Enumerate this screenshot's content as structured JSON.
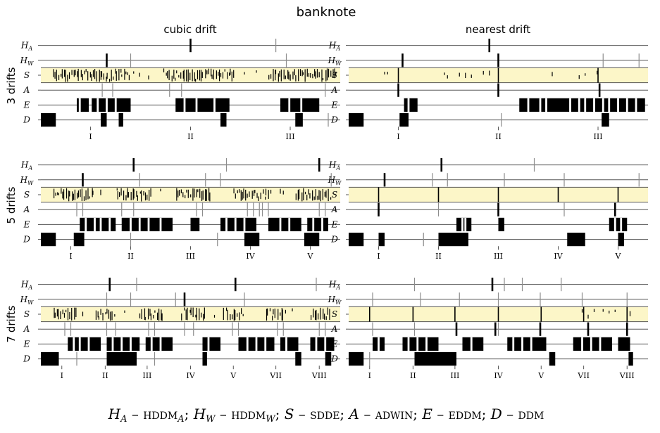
{
  "title": "banknote",
  "columns": [
    "cubic drift",
    "nearest drift"
  ],
  "rows": [
    "3 drifts",
    "5 drifts",
    "7 drifts"
  ],
  "lanes": [
    {
      "key": "HA",
      "base": "H",
      "sub": "A"
    },
    {
      "key": "HW",
      "base": "H",
      "sub": "W"
    },
    {
      "key": "S",
      "base": "S",
      "sub": ""
    },
    {
      "key": "A",
      "base": "A",
      "sub": ""
    },
    {
      "key": "E",
      "base": "E",
      "sub": ""
    },
    {
      "key": "D",
      "base": "D",
      "sub": ""
    }
  ],
  "caption": [
    {
      "t": "H",
      "c": "it"
    },
    {
      "t": "A",
      "c": "sub it"
    },
    {
      "t": " – ",
      "c": ""
    },
    {
      "t": "hddm",
      "c": "sc"
    },
    {
      "t": "A",
      "c": "sub it"
    },
    {
      "t": "; ",
      "c": ""
    },
    {
      "t": "H",
      "c": "it"
    },
    {
      "t": "W",
      "c": "sub it"
    },
    {
      "t": " – ",
      "c": ""
    },
    {
      "t": "hddm",
      "c": "sc"
    },
    {
      "t": "W",
      "c": "sub it"
    },
    {
      "t": "; ",
      "c": ""
    },
    {
      "t": "S",
      "c": "it"
    },
    {
      "t": " – ",
      "c": ""
    },
    {
      "t": "sdde",
      "c": "sc"
    },
    {
      "t": "; ",
      "c": ""
    },
    {
      "t": "A",
      "c": "it"
    },
    {
      "t": " – ",
      "c": ""
    },
    {
      "t": "adwin",
      "c": "sc"
    },
    {
      "t": "; ",
      "c": ""
    },
    {
      "t": "E",
      "c": "it"
    },
    {
      "t": " – ",
      "c": ""
    },
    {
      "t": "eddm",
      "c": "sc"
    },
    {
      "t": "; ",
      "c": ""
    },
    {
      "t": "D",
      "c": "it"
    },
    {
      "t": " – ",
      "c": ""
    },
    {
      "t": "ddm",
      "c": "sc"
    }
  ],
  "colors": {
    "highlight": "#fcf6c8",
    "mark": "#000000",
    "frame": "#555555",
    "thin": "#8c8c8c"
  },
  "chart_data": {
    "type": "event-raster",
    "x_range": [
      0,
      1
    ],
    "panels": [
      {
        "row": "3 drifts",
        "column": "cubic drift",
        "ticks": [
          {
            "label": "I",
            "x": 0.166
          },
          {
            "label": "II",
            "x": 0.5
          },
          {
            "label": "III",
            "x": 0.833
          }
        ],
        "lanes": {
          "HA": {
            "thick": [
              0.5
            ],
            "thin": [
              0.785
            ]
          },
          "HW": {
            "thick": [
              0.22
            ],
            "thin": [
              0.3,
              0.82
            ]
          },
          "S": {
            "dense": [
              [
                0.04,
                0.3
              ],
              [
                0.41,
                0.65
              ],
              [
                0.76,
                0.99
              ]
            ],
            "sparse": [
              0.31,
              0.33,
              0.36,
              0.68,
              0.72
            ]
          },
          "A": {
            "thick": [],
            "thin": [
              0.205,
              0.24,
              0.43,
              0.47,
              0.95
            ]
          },
          "E": {
            "blocks": [
              [
                0.12,
                0.16
              ],
              [
                0.17,
                0.3
              ],
              [
                0.45,
                0.63
              ],
              [
                0.8,
                0.93
              ]
            ],
            "gaps": [
              0.13,
              0.19,
              0.22,
              0.25,
              0.48,
              0.52,
              0.58,
              0.83,
              0.87
            ]
          },
          "D": {
            "blocks": [
              [
                0.0,
                0.05
              ],
              [
                0.2,
                0.22
              ],
              [
                0.26,
                0.275
              ],
              [
                0.6,
                0.62
              ],
              [
                0.85,
                0.875
              ]
            ],
            "thin": [
              0.96
            ]
          }
        }
      },
      {
        "row": "3 drifts",
        "column": "nearest drift",
        "ticks": [
          {
            "label": "I",
            "x": 0.166
          },
          {
            "label": "II",
            "x": 0.5
          },
          {
            "label": "III",
            "x": 0.833
          }
        ],
        "lanes": {
          "HA": {
            "thick": [
              0.47
            ],
            "thin": []
          },
          "HW": {
            "thick": [
              0.18,
              0.5
            ],
            "thin": [
              0.85,
              0.97
            ]
          },
          "S": {
            "dense": [],
            "sparse": [
              0.12,
              0.13,
              0.32,
              0.33,
              0.37,
              0.39,
              0.41,
              0.45,
              0.47,
              0.68,
              0.77,
              0.79,
              0.83
            ],
            "lines": [
              0.166,
              0.5,
              0.833
            ]
          },
          "A": {
            "thick": [
              0.166,
              0.5,
              0.838
            ],
            "thin": []
          },
          "E": {
            "blocks": [
              [
                0.185,
                0.23
              ],
              [
                0.57,
                0.99
              ]
            ],
            "gaps": [
              0.2,
              0.6,
              0.64,
              0.66,
              0.74,
              0.77,
              0.79,
              0.82,
              0.85,
              0.87,
              0.9,
              0.93,
              0.96
            ]
          },
          "D": {
            "blocks": [
              [
                0.0,
                0.05
              ],
              [
                0.17,
                0.2
              ],
              [
                0.845,
                0.87
              ]
            ],
            "thin": [
              0.51
            ]
          }
        }
      },
      {
        "row": "5 drifts",
        "column": "cubic drift",
        "ticks": [
          {
            "label": "I",
            "x": 0.1
          },
          {
            "label": "II",
            "x": 0.3
          },
          {
            "label": "III",
            "x": 0.5
          },
          {
            "label": "IV",
            "x": 0.7
          },
          {
            "label": "V",
            "x": 0.9
          }
        ],
        "lanes": {
          "HA": {
            "thick": [
              0.31,
              0.93
            ],
            "thin": [
              0.62
            ]
          },
          "HW": {
            "thick": [
              0.14
            ],
            "thin": [
              0.33,
              0.55,
              0.6,
              0.97
            ]
          },
          "S": {
            "dense": [
              [
                0.04,
                0.18
              ],
              [
                0.25,
                0.37
              ],
              [
                0.45,
                0.57
              ],
              [
                0.64,
                0.77
              ],
              [
                0.85,
                0.97
              ]
            ],
            "sparse": [
              0.2,
              0.4,
              0.8,
              0.81
            ]
          },
          "A": {
            "thick": [],
            "thin": [
              0.12,
              0.14,
              0.27,
              0.31,
              0.52,
              0.54,
              0.69,
              0.71,
              0.73,
              0.74,
              0.76,
              0.93,
              0.95
            ]
          },
          "E": {
            "blocks": [
              [
                0.13,
                0.25
              ],
              [
                0.27,
                0.44
              ],
              [
                0.5,
                0.53
              ],
              [
                0.6,
                0.72
              ],
              [
                0.76,
                0.87
              ],
              [
                0.89,
                0.96
              ]
            ],
            "gaps": [
              0.15,
              0.18,
              0.2,
              0.23,
              0.3,
              0.33,
              0.36,
              0.4,
              0.62,
              0.65,
              0.68,
              0.8,
              0.83,
              0.91,
              0.94
            ]
          },
          "D": {
            "blocks": [
              [
                0.0,
                0.05
              ],
              [
                0.11,
                0.145
              ],
              [
                0.68,
                0.73
              ],
              [
                0.88,
                0.93
              ]
            ],
            "thin": [
              0.3,
              0.59
            ]
          }
        }
      },
      {
        "row": "5 drifts",
        "column": "nearest drift",
        "ticks": [
          {
            "label": "I",
            "x": 0.1
          },
          {
            "label": "II",
            "x": 0.3
          },
          {
            "label": "III",
            "x": 0.5
          },
          {
            "label": "IV",
            "x": 0.7
          },
          {
            "label": "V",
            "x": 0.9
          }
        ],
        "lanes": {
          "HA": {
            "thick": [
              0.31
            ],
            "thin": [
              0.62
            ]
          },
          "HW": {
            "thick": [
              0.12
            ],
            "thin": [
              0.28,
              0.33,
              0.52,
              0.72,
              0.97
            ]
          },
          "S": {
            "dense": [],
            "sparse": [],
            "lines": [
              0.1,
              0.3,
              0.5,
              0.7,
              0.9
            ]
          },
          "A": {
            "thick": [
              0.1,
              0.5,
              0.89
            ],
            "thin": [
              0.3,
              0.72
            ]
          },
          "E": {
            "blocks": [
              [
                0.36,
                0.41
              ],
              [
                0.5,
                0.52
              ],
              [
                0.87,
                0.93
              ]
            ],
            "gaps": [
              0.38,
              0.39,
              0.89,
              0.91
            ]
          },
          "D": {
            "blocks": [
              [
                0.0,
                0.05
              ],
              [
                0.1,
                0.12
              ],
              [
                0.3,
                0.4
              ],
              [
                0.73,
                0.79
              ],
              [
                0.9,
                0.92
              ]
            ],
            "thin": [
              0.25
            ]
          }
        }
      },
      {
        "row": "7 drifts",
        "column": "cubic drift",
        "ticks": [
          {
            "label": "I",
            "x": 0.07
          },
          {
            "label": "II",
            "x": 0.215
          },
          {
            "label": "III",
            "x": 0.355
          },
          {
            "label": "IV",
            "x": 0.5
          },
          {
            "label": "V",
            "x": 0.643
          },
          {
            "label": "VII",
            "x": 0.785
          },
          {
            "label": "VIII",
            "x": 0.93
          }
        ],
        "lanes": {
          "HA": {
            "thick": [
              0.23,
              0.65
            ],
            "thin": [
              0.32,
              0.92
            ]
          },
          "HW": {
            "thick": [
              0.48
            ],
            "thin": [
              0.22,
              0.3,
              0.45,
              0.68
            ]
          },
          "S": {
            "dense": [
              [
                0.04,
                0.12
              ],
              [
                0.18,
                0.25
              ],
              [
                0.33,
                0.41
              ],
              [
                0.47,
                0.55
              ],
              [
                0.61,
                0.68
              ],
              [
                0.75,
                0.82
              ],
              [
                0.9,
                0.97
              ]
            ],
            "sparse": [
              0.14,
              0.28,
              0.58,
              0.84
            ]
          },
          "A": {
            "thick": [],
            "thin": [
              0.08,
              0.1,
              0.22,
              0.25,
              0.36,
              0.38,
              0.48,
              0.51,
              0.64,
              0.66,
              0.79,
              0.81,
              0.93,
              0.95
            ]
          },
          "E": {
            "blocks": [
              [
                0.09,
                0.2
              ],
              [
                0.22,
                0.33
              ],
              [
                0.35,
                0.44
              ],
              [
                0.54,
                0.6
              ],
              [
                0.66,
                0.78
              ],
              [
                0.8,
                0.86
              ],
              [
                0.9,
                0.98
              ]
            ],
            "gaps": [
              0.11,
              0.13,
              0.16,
              0.24,
              0.27,
              0.3,
              0.37,
              0.4,
              0.56,
              0.69,
              0.72,
              0.75,
              0.82,
              0.92,
              0.95
            ]
          },
          "D": {
            "blocks": [
              [
                0.0,
                0.06
              ],
              [
                0.22,
                0.32
              ],
              [
                0.54,
                0.555
              ],
              [
                0.85,
                0.87
              ],
              [
                0.95,
                0.97
              ]
            ],
            "thin": [
              0.12,
              0.38
            ]
          }
        }
      },
      {
        "row": "7 drifts",
        "column": "nearest drift",
        "ticks": [
          {
            "label": "I",
            "x": 0.07
          },
          {
            "label": "II",
            "x": 0.215
          },
          {
            "label": "III",
            "x": 0.355
          },
          {
            "label": "IV",
            "x": 0.5
          },
          {
            "label": "V",
            "x": 0.643
          },
          {
            "label": "VII",
            "x": 0.785
          },
          {
            "label": "VIII",
            "x": 0.93
          }
        ],
        "lanes": {
          "HA": {
            "thick": [
              0.48
            ],
            "thin": [
              0.22,
              0.52,
              0.58,
              0.71
            ]
          },
          "HW": {
            "thick": [],
            "thin": [
              0.08,
              0.24,
              0.37,
              0.5,
              0.64,
              0.78,
              0.93
            ]
          },
          "S": {
            "dense": [],
            "sparse": [
              0.78,
              0.8,
              0.82,
              0.85,
              0.87,
              0.89,
              0.94
            ],
            "lines": [
              0.07,
              0.215,
              0.355,
              0.5,
              0.643,
              0.785,
              0.93
            ]
          },
          "A": {
            "thick": [
              0.36,
              0.49,
              0.64,
              0.8,
              0.93
            ],
            "thin": [
              0.08,
              0.22,
              0.5
            ]
          },
          "E": {
            "blocks": [
              [
                0.08,
                0.12
              ],
              [
                0.18,
                0.3
              ],
              [
                0.38,
                0.45
              ],
              [
                0.53,
                0.66
              ],
              [
                0.75,
                0.88
              ],
              [
                0.9,
                0.94
              ]
            ],
            "gaps": [
              0.1,
              0.2,
              0.23,
              0.26,
              0.41,
              0.55,
              0.58,
              0.61,
              0.78,
              0.81,
              0.84
            ]
          },
          "D": {
            "blocks": [
              [
                0.0,
                0.05
              ],
              [
                0.22,
                0.36
              ],
              [
                0.67,
                0.69
              ],
              [
                0.935,
                0.95
              ]
            ],
            "thin": [
              0.07
            ]
          }
        }
      }
    ]
  }
}
